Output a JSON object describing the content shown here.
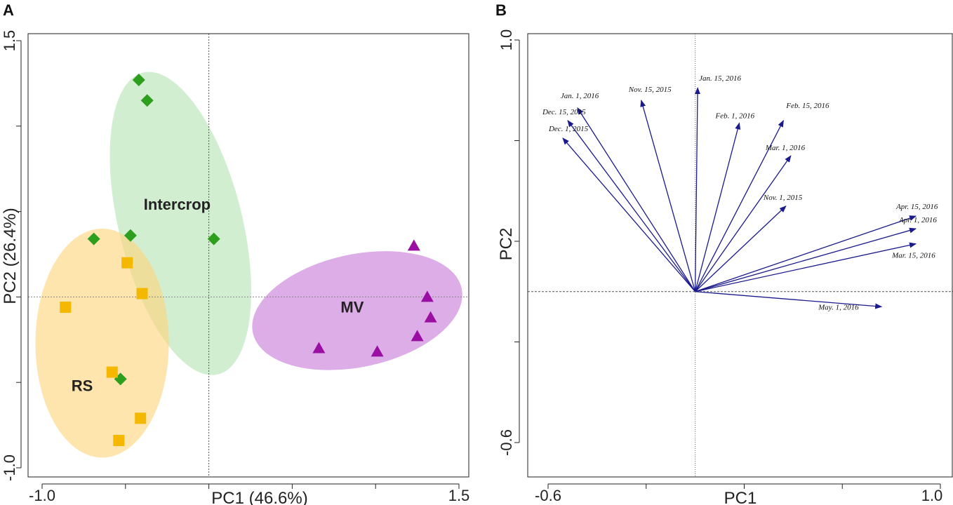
{
  "chart_data": [
    {
      "panel": "A",
      "type": "scatter",
      "xlabel": "PC1 (46.6%)",
      "ylabel": "PC2 (26.4%)",
      "xlim": [
        -1.0,
        1.5
      ],
      "ylim": [
        -1.0,
        1.5
      ],
      "x_tick_labels": [
        "-1.0",
        "1.5"
      ],
      "y_tick_labels": [
        "-1.0",
        "1.5"
      ],
      "reference_lines": {
        "x": 0,
        "y": 0
      },
      "series": [
        {
          "name": "Intercrop",
          "marker": "diamond",
          "color": "#2e9e1e",
          "ellipse_color": "#b7e3b4",
          "ellipse": {
            "cx": -0.17,
            "cy": 0.43,
            "rx": 0.37,
            "ry": 0.91,
            "angle": -14
          },
          "points": [
            [
              -0.42,
              1.27
            ],
            [
              -0.37,
              1.15
            ],
            [
              -0.69,
              0.34
            ],
            [
              -0.47,
              0.36
            ],
            [
              0.03,
              0.34
            ],
            [
              -0.53,
              -0.48
            ]
          ]
        },
        {
          "name": "RS",
          "marker": "square",
          "color": "#f5b800",
          "ellipse_color": "#fdd37a",
          "ellipse": {
            "cx": -0.64,
            "cy": -0.27,
            "rx": 0.4,
            "ry": 0.67,
            "angle": 0
          },
          "points": [
            [
              -0.86,
              -0.06
            ],
            [
              -0.49,
              0.2
            ],
            [
              -0.4,
              0.02
            ],
            [
              -0.58,
              -0.44
            ],
            [
              -0.41,
              -0.71
            ],
            [
              -0.54,
              -0.84
            ]
          ]
        },
        {
          "name": "MV",
          "marker": "triangle",
          "color": "#9b0ea3",
          "ellipse_color": "#c77bd6",
          "ellipse": {
            "cx": 0.89,
            "cy": -0.08,
            "rx": 0.64,
            "ry": 0.33,
            "angle": -12
          },
          "points": [
            [
              1.23,
              0.3
            ],
            [
              1.31,
              0.0
            ],
            [
              1.33,
              -0.12
            ],
            [
              1.25,
              -0.23
            ],
            [
              0.66,
              -0.3
            ],
            [
              1.01,
              -0.32
            ]
          ]
        }
      ]
    },
    {
      "panel": "B",
      "type": "vector",
      "xlabel": "PC1",
      "ylabel": "PC2",
      "xlim": [
        -0.6,
        1.0
      ],
      "ylim": [
        -0.6,
        1.0
      ],
      "x_tick_labels": [
        "-0.6",
        "1.0"
      ],
      "y_tick_labels": [
        "-0.6",
        "1.0"
      ],
      "reference_lines": {
        "x": 0,
        "y": 0
      },
      "arrow_color": "#1a1a8c",
      "vectors": [
        {
          "label": "Jan. 15, 2016",
          "x": 0.01,
          "y": 0.81
        },
        {
          "label": "Nov. 15, 2015",
          "x": -0.22,
          "y": 0.76
        },
        {
          "label": "Jan. 1, 2016",
          "x": -0.48,
          "y": 0.73
        },
        {
          "label": "Dec. 15, 2015",
          "x": -0.52,
          "y": 0.68
        },
        {
          "label": "Dec. 1, 2015",
          "x": -0.54,
          "y": 0.61
        },
        {
          "label": "Feb. 1, 2016",
          "x": 0.18,
          "y": 0.67
        },
        {
          "label": "Feb. 15, 2016",
          "x": 0.36,
          "y": 0.68
        },
        {
          "label": "Mar. 1, 2016",
          "x": 0.39,
          "y": 0.54
        },
        {
          "label": "Nov. 1, 2015",
          "x": 0.37,
          "y": 0.34
        },
        {
          "label": "Apr. 15, 2016",
          "x": 0.9,
          "y": 0.3
        },
        {
          "label": "Apr. 1, 2016",
          "x": 0.9,
          "y": 0.25
        },
        {
          "label": "Mar. 15, 2016",
          "x": 0.9,
          "y": 0.19
        },
        {
          "label": "May. 1, 2016",
          "x": 0.76,
          "y": -0.06
        }
      ]
    }
  ]
}
